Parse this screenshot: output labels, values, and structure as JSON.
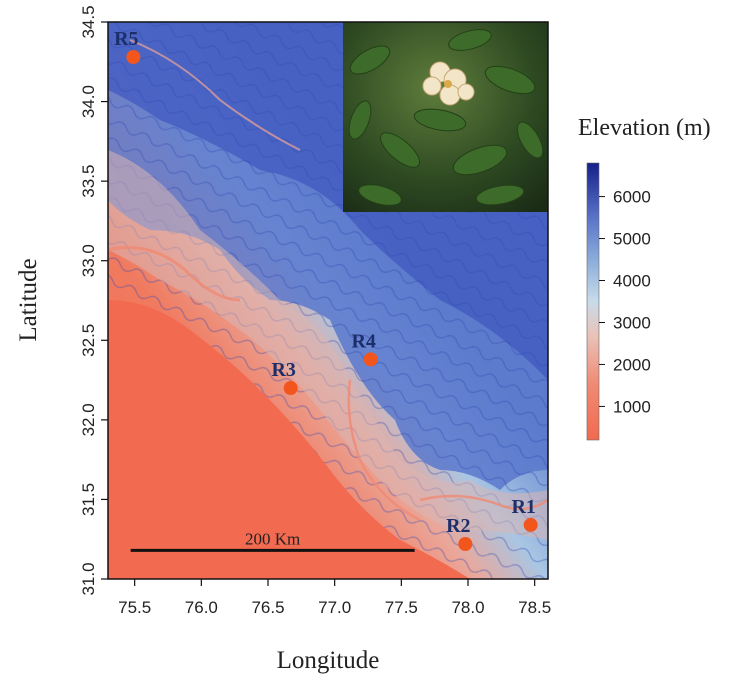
{
  "chart_data": {
    "type": "map",
    "title": "",
    "xlabel": "Longitude",
    "ylabel": "Latitude",
    "xlim": [
      75.3,
      78.6
    ],
    "ylim": [
      31.0,
      34.5
    ],
    "x_ticks": [
      "75.5",
      "76.0",
      "76.5",
      "77.0",
      "77.5",
      "78.0",
      "78.5"
    ],
    "y_ticks": [
      "31.0",
      "31.5",
      "32.0",
      "32.5",
      "33.0",
      "33.5",
      "34.0",
      "34.5"
    ],
    "sites": [
      {
        "label": "R1",
        "lon": 78.47,
        "lat": 31.34
      },
      {
        "label": "R2",
        "lon": 77.98,
        "lat": 31.22
      },
      {
        "label": "R3",
        "lon": 76.67,
        "lat": 32.2
      },
      {
        "label": "R4",
        "lon": 77.27,
        "lat": 32.38
      },
      {
        "label": "R5",
        "lon": 75.49,
        "lat": 34.28
      }
    ],
    "scale_bar": {
      "label": "200 Km",
      "lon_start": 75.47,
      "lon_end": 77.6,
      "lat": 31.18
    },
    "legend": {
      "title": "Elevation (m)",
      "ticks": [
        "1000",
        "2000",
        "3000",
        "4000",
        "5000",
        "6000"
      ],
      "range": [
        200,
        6800
      ]
    },
    "colors": {
      "low": "#f26a4f",
      "mid_low": "#f0a594",
      "mid": "#c9d8e6",
      "mid_high": "#6c88cf",
      "high": "#1a2c8f",
      "site_marker": "#f2561d"
    },
    "inset_photo": "rhododendron-flower-photo"
  }
}
